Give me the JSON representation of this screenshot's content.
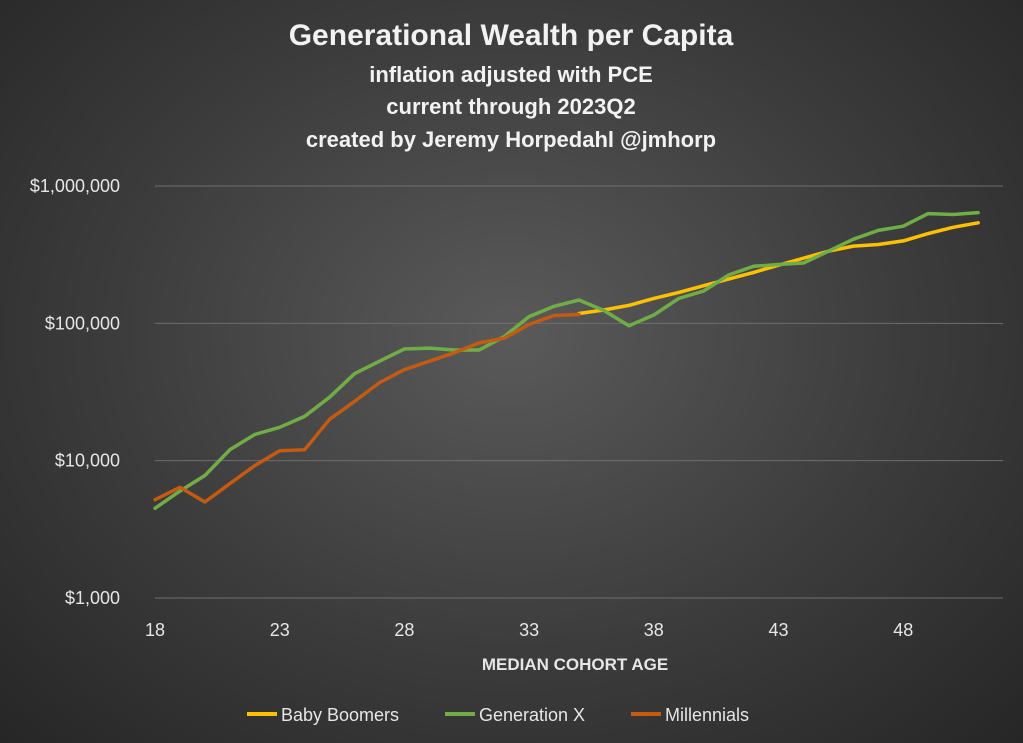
{
  "chart_data": {
    "type": "line",
    "title": "Generational Wealth per Capita",
    "subtitles": [
      "inflation adjusted with PCE",
      "current through 2023Q2",
      "created by Jeremy Horpedahl @jmhorp"
    ],
    "xlabel": "MEDIAN COHORT AGE",
    "ylabel": "",
    "y_scale": "log",
    "ylim": [
      1000,
      1000000
    ],
    "xlim": [
      18,
      52
    ],
    "x_ticks": [
      18,
      23,
      28,
      33,
      38,
      43,
      48
    ],
    "x_tick_labels": [
      "18",
      "23",
      "28",
      "33",
      "38",
      "43",
      "48"
    ],
    "y_ticks": [
      1000,
      10000,
      100000,
      1000000
    ],
    "y_tick_labels": [
      "$1,000",
      "$10,000",
      "$100,000",
      "$1,000,000"
    ],
    "grid": "horizontal",
    "legend_position": "bottom",
    "series": [
      {
        "name": "Baby Boomers",
        "color": "#ffc000",
        "x": [
          35,
          36,
          37,
          38,
          39,
          40,
          41,
          42,
          43,
          44,
          45,
          46,
          47,
          48,
          49,
          50,
          51
        ],
        "values": [
          118000,
          125000,
          135000,
          152000,
          168000,
          188000,
          210000,
          235000,
          265000,
          298000,
          335000,
          365000,
          375000,
          398000,
          450000,
          500000,
          540000
        ]
      },
      {
        "name": "Generation X",
        "color": "#70ad47",
        "x": [
          18,
          19,
          20,
          21,
          22,
          23,
          24,
          25,
          26,
          27,
          28,
          29,
          30,
          31,
          32,
          33,
          34,
          35,
          36,
          37,
          38,
          39,
          40,
          41,
          42,
          43,
          44,
          45,
          46,
          47,
          48,
          49,
          50,
          51
        ],
        "values": [
          4500,
          6000,
          7800,
          12000,
          15500,
          17500,
          21000,
          29000,
          43000,
          53000,
          65000,
          66000,
          64000,
          64000,
          80000,
          112000,
          133000,
          148000,
          124000,
          96000,
          115000,
          152000,
          172000,
          225000,
          260000,
          268000,
          275000,
          335000,
          410000,
          475000,
          510000,
          630000,
          620000,
          640000
        ]
      },
      {
        "name": "Millennials",
        "color": "#c55a11",
        "x": [
          18,
          19,
          20,
          21,
          22,
          23,
          24,
          25,
          26,
          27,
          28,
          29,
          30,
          31,
          32,
          33,
          34,
          35
        ],
        "values": [
          5200,
          6400,
          5000,
          6800,
          9200,
          11800,
          12000,
          20000,
          27000,
          37000,
          46000,
          53000,
          61000,
          72000,
          78000,
          98000,
          114000,
          116000
        ]
      }
    ]
  }
}
